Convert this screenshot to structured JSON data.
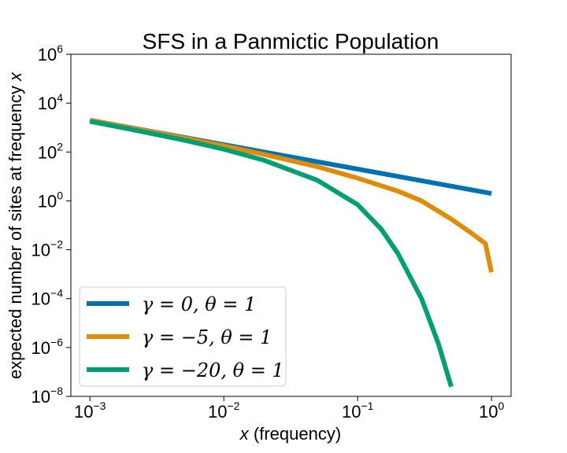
{
  "chart_data": {
    "type": "line",
    "title": "SFS in a Panmictic Population",
    "xlabel_var": "x",
    "xlabel_rest": " (frequency)",
    "ylabel_rest": "expected number of sites at frequency ",
    "ylabel_var": "x",
    "x_scale": "log",
    "y_scale": "log",
    "xlim": [
      0.00072,
      1.4
    ],
    "ylim": [
      1e-08,
      1000000.0
    ],
    "x_ticks": [
      {
        "value": 0.001,
        "base": "10",
        "exp": "−3"
      },
      {
        "value": 0.01,
        "base": "10",
        "exp": "−2"
      },
      {
        "value": 0.1,
        "base": "10",
        "exp": "−1"
      },
      {
        "value": 1,
        "base": "10",
        "exp": "0"
      }
    ],
    "y_ticks": [
      {
        "value": 1e-08,
        "base": "10",
        "exp": "−8"
      },
      {
        "value": 1e-06,
        "base": "10",
        "exp": "−6"
      },
      {
        "value": 0.0001,
        "base": "10",
        "exp": "−4"
      },
      {
        "value": 0.01,
        "base": "10",
        "exp": "−2"
      },
      {
        "value": 1,
        "base": "10",
        "exp": "0"
      },
      {
        "value": 100.0,
        "base": "10",
        "exp": "2"
      },
      {
        "value": 10000.0,
        "base": "10",
        "exp": "4"
      },
      {
        "value": 1000000.0,
        "base": "10",
        "exp": "6"
      }
    ],
    "grid": false,
    "legend_position": "lower-left",
    "series": [
      {
        "name": "γ = 0, θ = 1",
        "color": "#0072b2",
        "x": [
          0.001,
          0.002,
          0.005,
          0.01,
          0.02,
          0.05,
          0.1,
          0.2,
          0.5,
          1.0
        ],
        "y": [
          2000,
          1000,
          400,
          200,
          100,
          40,
          20,
          10,
          4,
          2
        ]
      },
      {
        "name": "γ = −5, θ = 1",
        "color": "#e08c0b",
        "x": [
          0.001,
          0.002,
          0.005,
          0.01,
          0.02,
          0.05,
          0.1,
          0.2,
          0.3,
          0.5,
          0.7,
          0.9,
          0.999
        ],
        "y": [
          1980,
          980,
          380,
          180,
          80,
          25,
          8.5,
          2.5,
          1.0,
          0.18,
          0.05,
          0.018,
          0.0012
        ]
      },
      {
        "name": "γ = −20, θ = 1",
        "color": "#009e73",
        "x": [
          0.001,
          0.002,
          0.005,
          0.01,
          0.02,
          0.05,
          0.1,
          0.15,
          0.2,
          0.3,
          0.4,
          0.5
        ],
        "y": [
          1800,
          860,
          310,
          130,
          46,
          7,
          0.7,
          0.07,
          0.007,
          0.0001,
          1.5e-06,
          2.5e-08
        ]
      }
    ]
  }
}
